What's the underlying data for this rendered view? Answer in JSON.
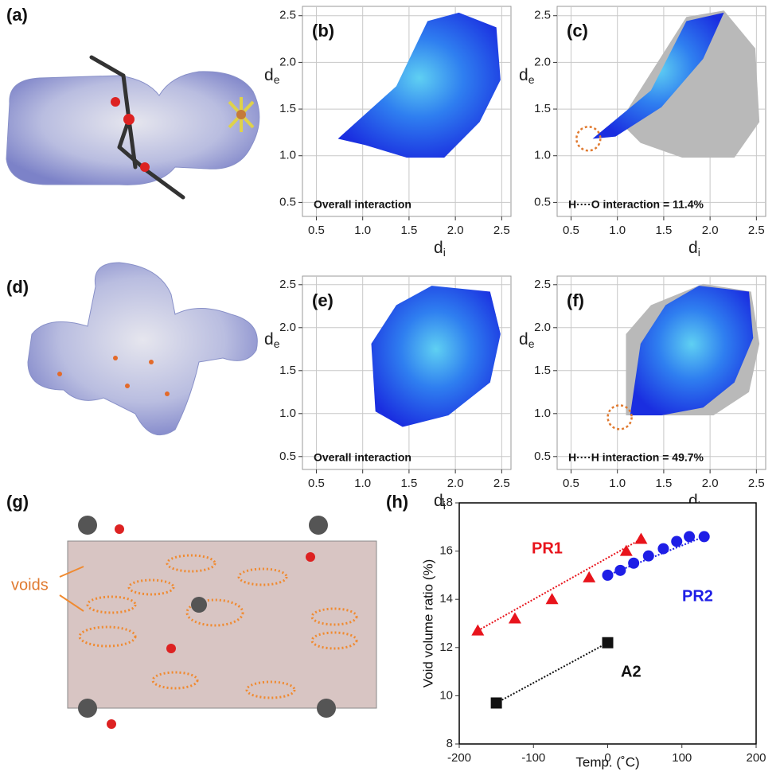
{
  "images": [
    {
      "label": "(a)"
    },
    {
      "label": "(d)"
    },
    {
      "label": "(g)",
      "annotation": "voids"
    }
  ],
  "chart_data": [
    {
      "type": "fingerprint",
      "panel_label": "(b)",
      "annotation": "Overall interaction",
      "highlight": false,
      "xlabel": "d",
      "xlabel_sub": "i",
      "ylabel": "d",
      "ylabel_sub": "e",
      "xlim": [
        0.35,
        2.6
      ],
      "ylim": [
        0.35,
        2.6
      ],
      "xticks": [
        0.5,
        {
          "value": 1,
          "label": "1.0"
        },
        1.5,
        {
          "value": 2,
          "label": "2.0"
        },
        2.5
      ],
      "yticks": [
        0.5,
        {
          "value": 1,
          "label": "1.0"
        },
        1.5,
        {
          "value": 2,
          "label": "2.0"
        },
        2.5
      ],
      "grid": true
    },
    {
      "type": "fingerprint",
      "panel_label": "(c)",
      "annotation": "H····O interaction = 11.4%",
      "highlight": true,
      "xlabel": "d",
      "xlabel_sub": "i",
      "ylabel": "d",
      "ylabel_sub": "e",
      "xlim": [
        0.35,
        2.6
      ],
      "ylim": [
        0.35,
        2.6
      ],
      "xticks": [
        0.5,
        {
          "value": 1,
          "label": "1.0"
        },
        1.5,
        {
          "value": 2,
          "label": "2.0"
        },
        2.5
      ],
      "yticks": [
        0.5,
        {
          "value": 1,
          "label": "1.0"
        },
        1.5,
        {
          "value": 2,
          "label": "2.0"
        },
        2.5
      ],
      "grid": true
    },
    {
      "type": "fingerprint",
      "panel_label": "(e)",
      "annotation": "Overall interaction",
      "highlight": false,
      "xlabel": "d",
      "xlabel_sub": "i",
      "ylabel": "d",
      "ylabel_sub": "e",
      "xlim": [
        0.35,
        2.6
      ],
      "ylim": [
        0.35,
        2.6
      ],
      "xticks": [
        0.5,
        {
          "value": 1,
          "label": "1.0"
        },
        1.5,
        {
          "value": 2,
          "label": "2.0"
        },
        2.5
      ],
      "yticks": [
        0.5,
        {
          "value": 1,
          "label": "1.0"
        },
        1.5,
        {
          "value": 2,
          "label": "2.0"
        },
        2.5
      ],
      "grid": true
    },
    {
      "type": "fingerprint",
      "panel_label": "(f)",
      "annotation": "H····H interaction = 49.7%",
      "highlight": true,
      "xlabel": "d",
      "xlabel_sub": "i",
      "ylabel": "d",
      "ylabel_sub": "e",
      "xlim": [
        0.35,
        2.6
      ],
      "ylim": [
        0.35,
        2.6
      ],
      "xticks": [
        0.5,
        {
          "value": 1,
          "label": "1.0"
        },
        1.5,
        {
          "value": 2,
          "label": "2.0"
        },
        2.5
      ],
      "yticks": [
        0.5,
        {
          "value": 1,
          "label": "1.0"
        },
        1.5,
        {
          "value": 2,
          "label": "2.0"
        },
        2.5
      ],
      "grid": true
    },
    {
      "type": "scatter",
      "panel_label": "(h)",
      "xlabel": "Temp. (˚C)",
      "ylabel": "Void volume ratio (%)",
      "xlim": [
        -200,
        200
      ],
      "ylim": [
        8,
        18
      ],
      "xticks": [
        -200,
        -100,
        0,
        100,
        200
      ],
      "yticks": [
        8,
        10,
        12,
        14,
        16,
        18
      ],
      "grid": false,
      "series": [
        {
          "name": "PR1",
          "color": "#e8141c",
          "marker": "triangle",
          "x": [
            -175,
            -125,
            -75,
            -25,
            25,
            45
          ],
          "values": [
            12.7,
            13.2,
            14.0,
            14.9,
            16.0,
            16.5
          ]
        },
        {
          "name": "PR2",
          "color": "#1e1ee6",
          "marker": "circle",
          "x": [
            0,
            17,
            35,
            55,
            75,
            93,
            110,
            130
          ],
          "values": [
            15.0,
            15.2,
            15.5,
            15.8,
            16.1,
            16.4,
            16.6,
            16.6
          ]
        },
        {
          "name": "A2",
          "color": "#111111",
          "marker": "square",
          "x": [
            -150,
            0
          ],
          "values": [
            9.7,
            12.2
          ]
        }
      ]
    }
  ]
}
